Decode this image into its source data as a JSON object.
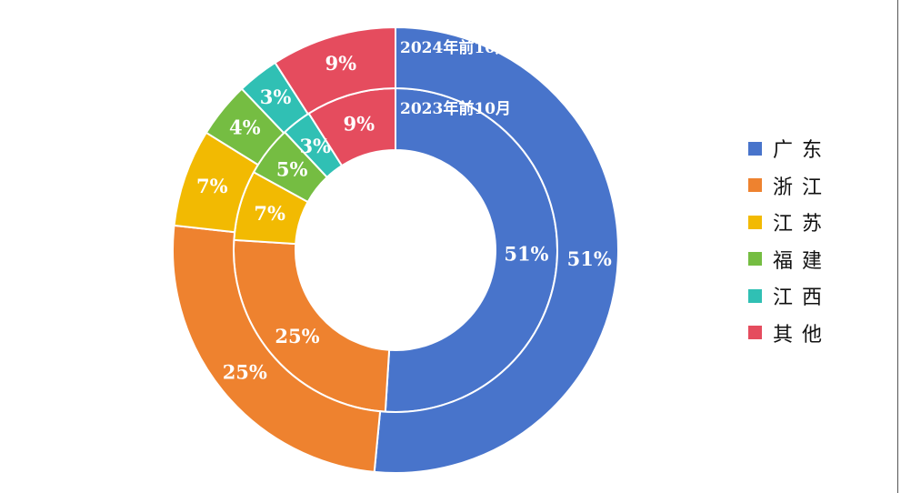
{
  "chart_data": {
    "type": "pie",
    "variant": "nested-donut",
    "categories": [
      "广东",
      "浙江",
      "江苏",
      "福建",
      "江西",
      "其他"
    ],
    "colors": [
      "#4874CB",
      "#EE822F",
      "#F2BA02",
      "#75BD42",
      "#30C0B4",
      "#E54C5E"
    ],
    "series": [
      {
        "name": "2023年前10月",
        "ring": "inner",
        "values": [
          51,
          25,
          7,
          5,
          3,
          9
        ]
      },
      {
        "name": "2024年前10月",
        "ring": "outer",
        "values": [
          51,
          25,
          7,
          4,
          3,
          9
        ]
      }
    ],
    "value_unit": "%",
    "start": "top",
    "direction": "clockwise",
    "legend": {
      "placement": "right"
    }
  }
}
